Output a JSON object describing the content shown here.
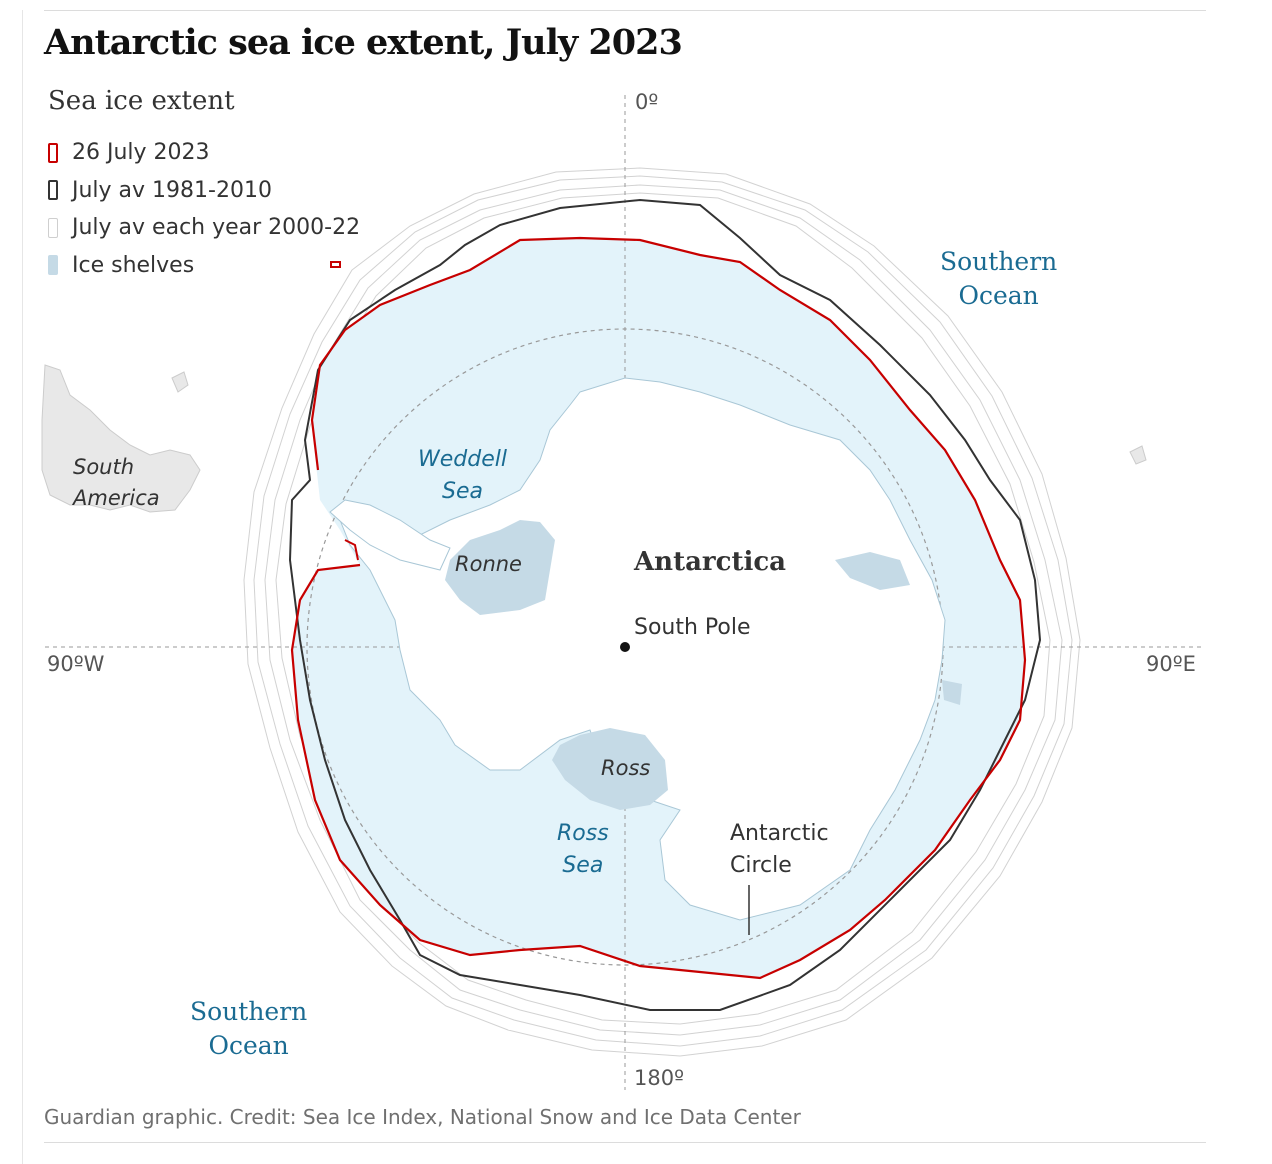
{
  "title": "Antarctic sea ice extent, July 2023",
  "legend": {
    "title": "Sea ice extent",
    "items": [
      {
        "label": "26 July 2023",
        "color": "#c70000"
      },
      {
        "label": "July av 1981-2010",
        "color": "#333333"
      },
      {
        "label": "July av each year 2000-22",
        "color": "#cfcfcf"
      },
      {
        "label": "Ice shelves",
        "color": "#c5dae6"
      }
    ]
  },
  "map_labels": {
    "southern_ocean": [
      "Southern",
      "Ocean"
    ],
    "south_america": [
      "South",
      "America"
    ],
    "weddell_sea": [
      "Weddell",
      "Sea"
    ],
    "ronne": "Ronne",
    "antarctica": "Antarctica",
    "south_pole": "South Pole",
    "ross_shelf": "Ross",
    "ross_sea": [
      "Ross",
      "Sea"
    ],
    "antarctic_circle": [
      "Antarctic",
      "Circle"
    ]
  },
  "axes": {
    "top": "0º",
    "bottom": "180º",
    "left": "90ºW",
    "right": "90ºE"
  },
  "credit": "Guardian graphic. Credit: Sea Ice Index, National Snow and Ice Data Center",
  "colors": {
    "current_2023": "#c70000",
    "average_1981_2010": "#333333",
    "yearly_2000_22": "#cfcfcf",
    "ice_shelves": "#c5dae6",
    "sea_ice_fill": "#e3f3fa",
    "ocean_label": "#1a6b92"
  }
}
